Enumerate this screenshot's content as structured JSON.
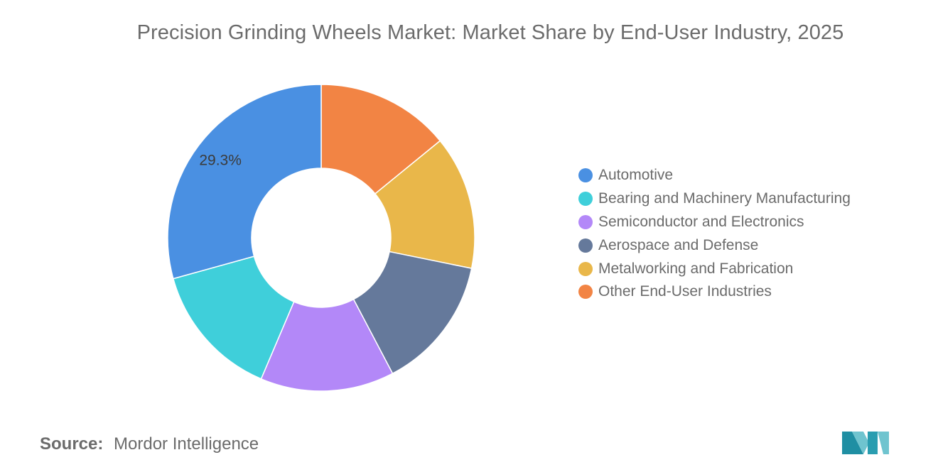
{
  "chart_data": {
    "type": "pie",
    "title": "Precision Grinding Wheels Market: Market Share by End-User Industry, 2025",
    "categories": [
      "Automotive",
      "Bearing and Machinery Manufacturing",
      "Semiconductor and Electronics",
      "Aerospace and Defense",
      "Metalworking and Fabrication",
      "Other End-User Industries"
    ],
    "values": [
      29.3,
      14.3,
      14.1,
      14.1,
      14.1,
      14.1
    ],
    "colors": [
      "#4a90e2",
      "#3fcfda",
      "#b388f8",
      "#65799b",
      "#e9b74a",
      "#f28444"
    ],
    "data_labels": [
      "29.3%",
      "",
      "",
      "",
      "",
      ""
    ],
    "donut": true,
    "legend_position": "right"
  },
  "source": {
    "label": "Source:",
    "text": "Mordor Intelligence"
  },
  "logo": {
    "icon": "mordor-intelligence-logo-icon"
  }
}
